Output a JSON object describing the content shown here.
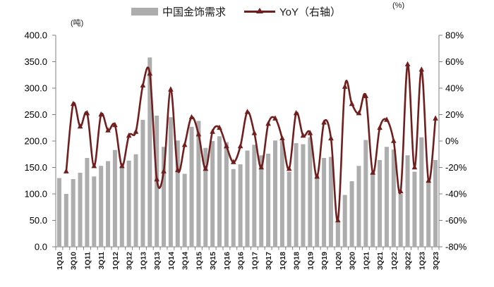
{
  "legend": {
    "bars_label": "中国金饰需求",
    "line_label": "YoY（右轴）"
  },
  "left_unit": "(吨)",
  "right_unit": "(%)",
  "chart_data": {
    "type": "bar+line",
    "title": "",
    "categories": [
      "1Q10",
      "2Q10",
      "3Q10",
      "4Q10",
      "1Q11",
      "2Q11",
      "3Q11",
      "4Q11",
      "1Q12",
      "2Q12",
      "3Q12",
      "4Q12",
      "1Q13",
      "2Q13",
      "3Q13",
      "4Q13",
      "1Q14",
      "2Q14",
      "3Q14",
      "4Q14",
      "1Q15",
      "2Q15",
      "3Q15",
      "4Q15",
      "1Q16",
      "2Q16",
      "3Q16",
      "4Q16",
      "1Q17",
      "2Q17",
      "3Q17",
      "4Q17",
      "1Q18",
      "2Q18",
      "3Q18",
      "4Q18",
      "1Q19",
      "2Q19",
      "3Q19",
      "4Q19",
      "1Q20",
      "2Q20",
      "3Q20",
      "4Q20",
      "1Q21",
      "2Q21",
      "3Q21",
      "4Q21",
      "1Q22",
      "2Q22",
      "3Q22",
      "4Q22",
      "1Q23",
      "2Q23",
      "3Q23"
    ],
    "x_label_every": 2,
    "series": [
      {
        "name": "中国金饰需求",
        "type": "bar",
        "axis": "left",
        "unit": "吨",
        "values": [
          130,
          100,
          128,
          140,
          168,
          133,
          153,
          162,
          183,
          153,
          163,
          175,
          240,
          358,
          248,
          189,
          245,
          201,
          138,
          227,
          238,
          187,
          200,
          209,
          198,
          147,
          156,
          182,
          193,
          173,
          176,
          201,
          200,
          142,
          196,
          194,
          207,
          135,
          168,
          170,
          48,
          98,
          124,
          153,
          202,
          140,
          164,
          189,
          184,
          100,
          173,
          142,
          207,
          122,
          164
        ]
      },
      {
        "name": "YoY（右轴）",
        "type": "line",
        "axis": "right",
        "unit": "%",
        "values": [
          null,
          -23,
          28,
          11,
          21,
          -19,
          20,
          8,
          12,
          -19,
          4,
          7,
          42,
          51,
          -29,
          -23,
          39,
          -22,
          -3,
          18,
          5,
          -21,
          7,
          10,
          -4,
          -16,
          -4,
          22,
          6,
          -20,
          13,
          17,
          2,
          -21,
          21,
          4,
          6,
          -27,
          14,
          2,
          -60,
          41,
          28,
          21,
          34,
          -24,
          10,
          16,
          0,
          -38,
          58,
          -20,
          54,
          -30,
          17
        ]
      }
    ],
    "left_axis": {
      "min": 0,
      "max": 400,
      "step": 50,
      "tick_labels": [
        "0.0",
        "50.0",
        "100.0",
        "150.0",
        "200.0",
        "250.0",
        "300.0",
        "350.0",
        "400.0"
      ]
    },
    "right_axis": {
      "min": -80,
      "max": 80,
      "step": 20,
      "tick_labels": [
        "-80%",
        "-60%",
        "-40%",
        "-20%",
        "0%",
        "20%",
        "40%",
        "60%",
        "80%"
      ]
    },
    "x_tick_labels": [
      "1Q10",
      "3Q10",
      "1Q11",
      "3Q11",
      "1Q12",
      "3Q12",
      "1Q13",
      "3Q13",
      "1Q14",
      "3Q14",
      "1Q15",
      "3Q15",
      "1Q16",
      "3Q16",
      "1Q17",
      "3Q17",
      "1Q18",
      "3Q18",
      "1Q19",
      "3Q19",
      "1Q20",
      "3Q20",
      "1Q21",
      "3Q21",
      "1Q22",
      "3Q22",
      "1Q23",
      "3Q23"
    ],
    "legend_position": "top",
    "grid": false,
    "colors": {
      "bar": "#ADADAD",
      "line": "#711E1E",
      "axis": "#7F7F7F",
      "text": "#000000"
    }
  }
}
